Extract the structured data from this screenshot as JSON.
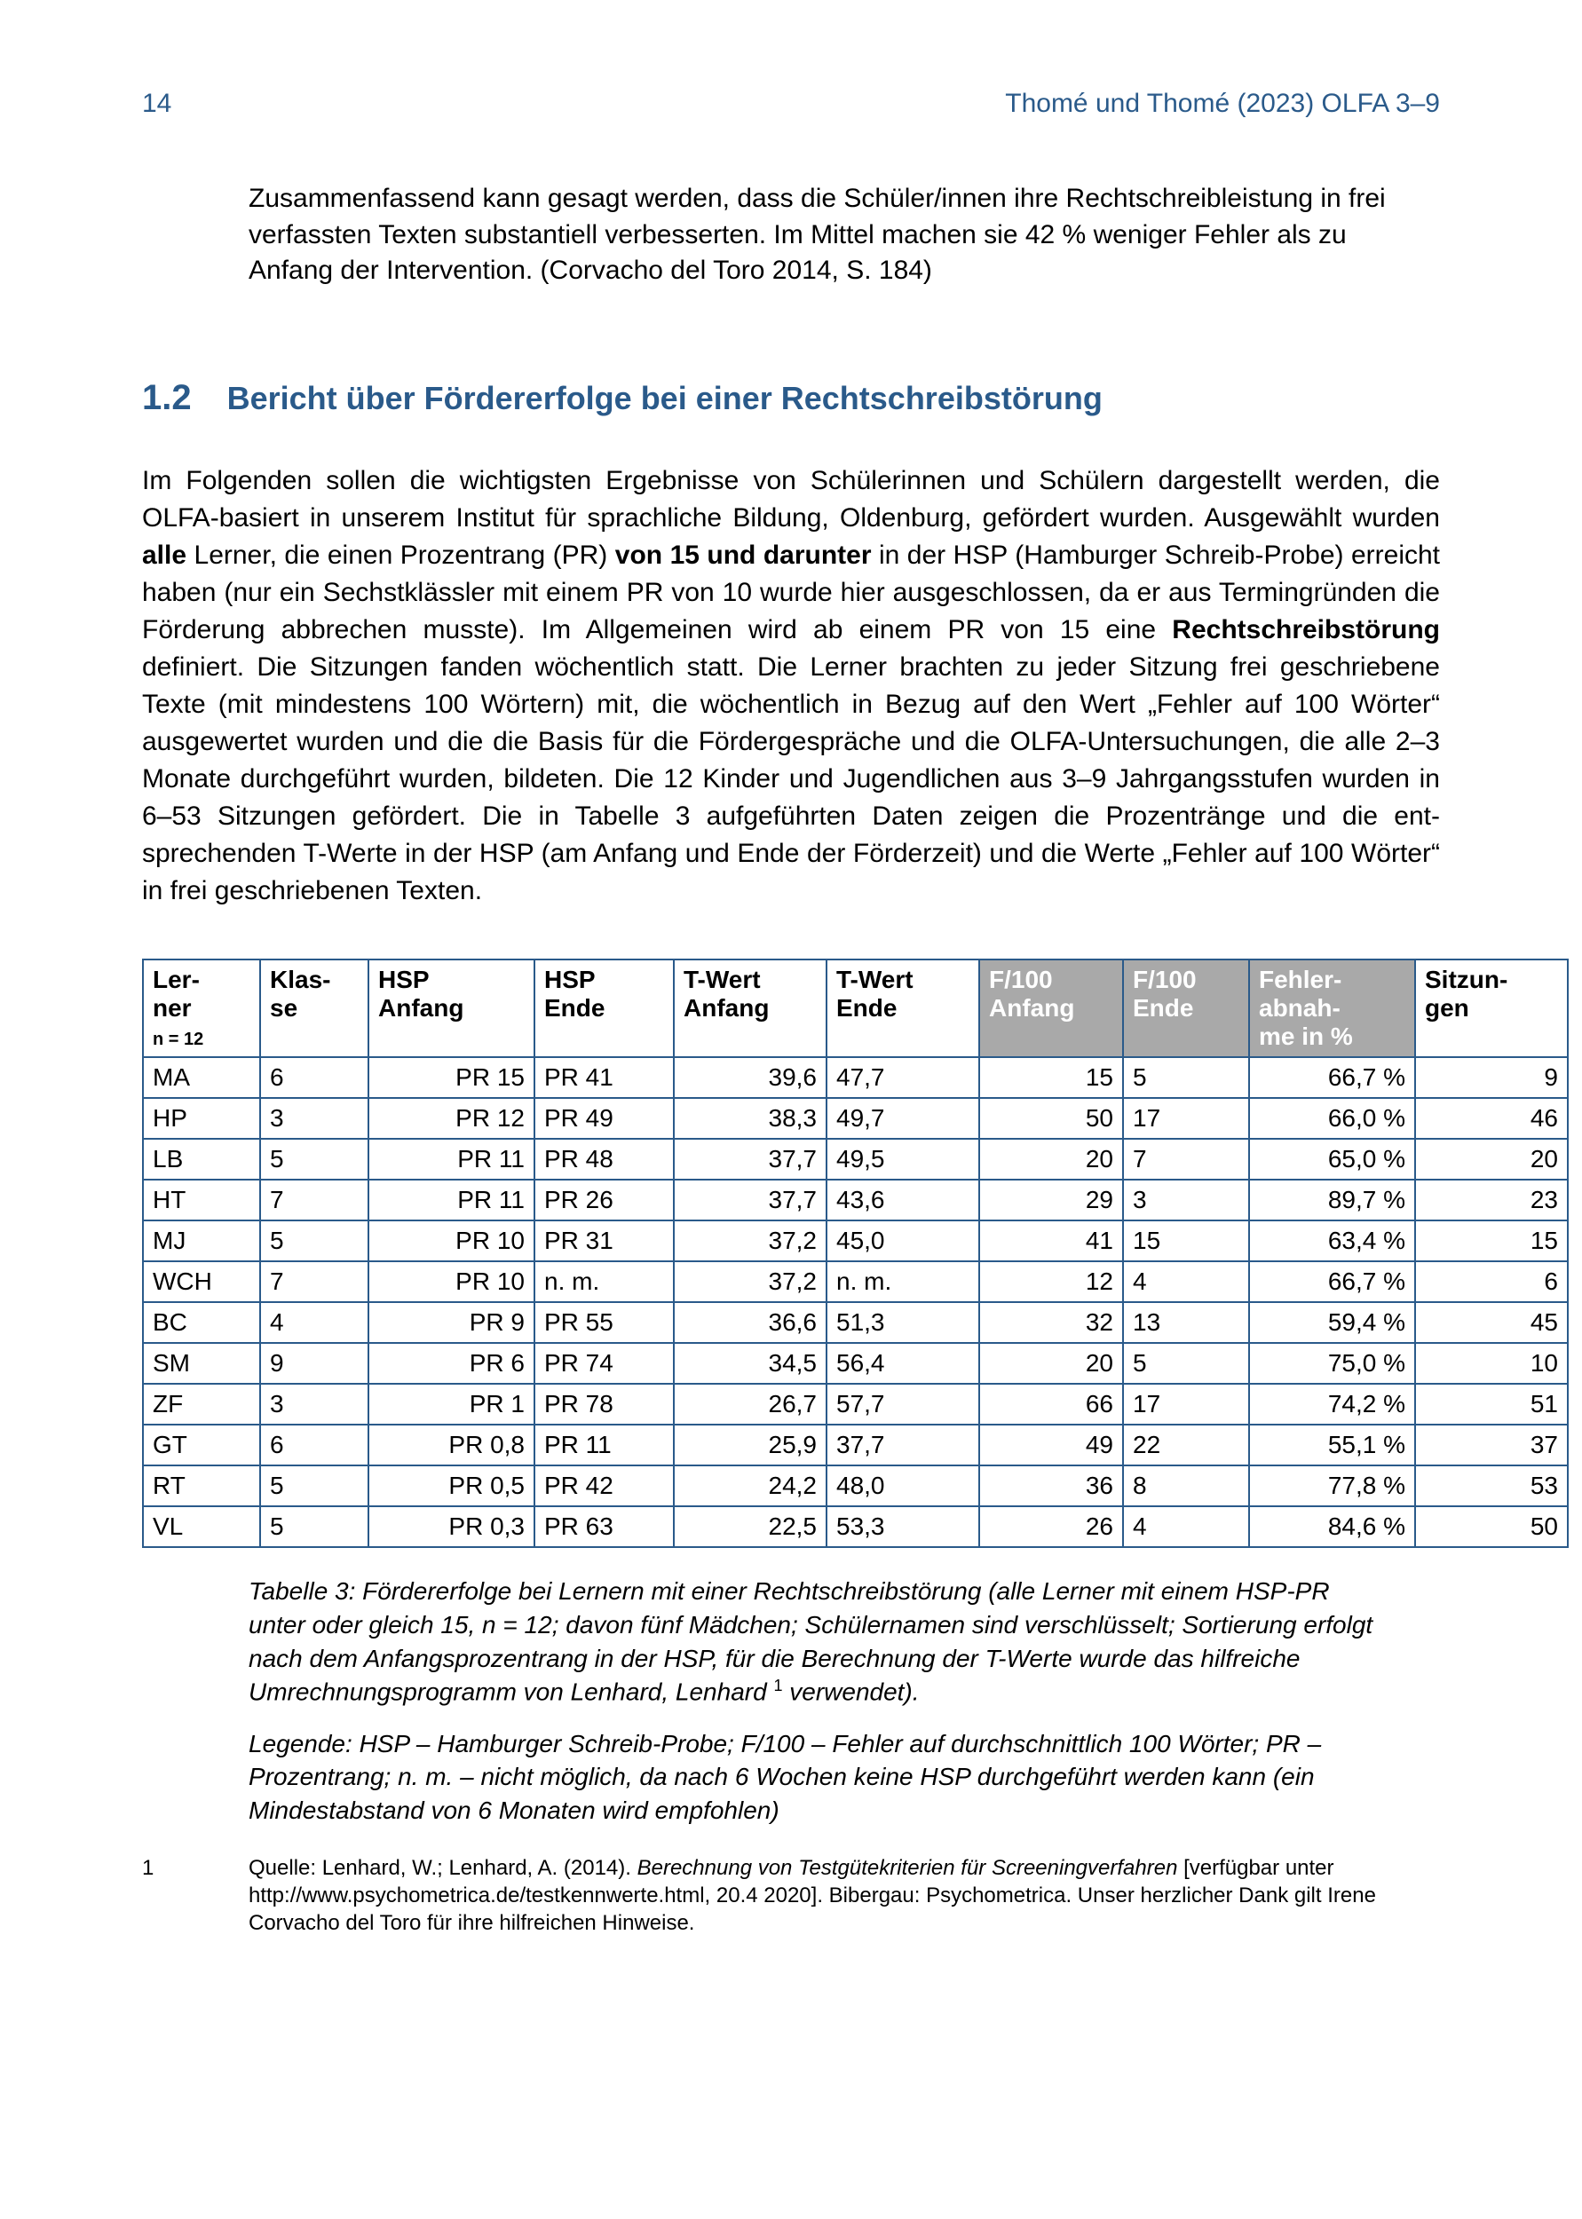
{
  "header": {
    "page_number": "14",
    "running_head": "Thomé und Thomé (2023)  OLFA 3–9"
  },
  "quote": "Zusammenfassend kann gesagt werden, dass die Schüler/innen ihre Rechtschreib­leistung in frei verfassten Texten substantiell verbesserten. Im Mittel machen sie 42 % weniger Fehler als zu Anfang der Intervention. (Corvacho del Toro 2014, S. 184)",
  "section": {
    "number": "1.2",
    "title": "Bericht über Fördererfolge bei einer Rechtschreibstörung"
  },
  "body": {
    "p1a": "Im Folgenden sollen die wichtigsten Ergebnisse von Schülerinnen und Schülern dargestellt werden, die OLFA-basiert in unserem Institut für sprachliche Bildung, Oldenburg, gefördert wurden. Ausgewählt wurden ",
    "bold1": "alle",
    "p1b": " Lerner, die einen Prozent­rang (PR) ",
    "bold2": "von 15 und darunter",
    "p1c": " in der HSP (Hamburger Schreib-Probe) erreicht haben (nur ein Sechstklässler mit einem PR von 10 wurde hier ausgeschlossen, da er aus Termingründen die Förderung abbrechen musste). Im Allgemeinen wird ab einem PR von 15 eine ",
    "bold3": "Rechtschreibstörung",
    "p1d": " definiert. Die Sitzungen fanden wöchentlich statt. Die Lerner brachten zu jeder Sitzung frei geschriebene Texte (mit mindestens 100 Wörtern) mit, die wöchentlich in Bezug auf den Wert „Fehler auf 100 Wörter“ ausgewertet wurden und die die Basis für die Fördergespräche und die OLFA-Untersuchungen, die alle 2–3 Monate durchgeführt wurden, bildeten. Die 12 Kinder und Jugendlichen aus 3–9 Jahrgangsstufen wurden in 6–53 Sitzungen ge­fördert. Die in Tabelle 3 aufgeführten Daten zeigen die Prozentränge und die ent­sprechenden T-Werte in der HSP (am Anfang und Ende der Förderzeit) und die Wer­te „Fehler auf 100 Wörter“ in frei geschriebenen Texten."
  },
  "table": {
    "columns": [
      {
        "key": "lerner",
        "label": "Ler-\nner",
        "sub": "n = 12",
        "grey": false,
        "width": 110,
        "align": "left"
      },
      {
        "key": "klasse",
        "label": "Klas-\nse",
        "sub": "",
        "grey": false,
        "width": 100,
        "align": "left"
      },
      {
        "key": "hsp_anfang",
        "label": "HSP\nAnfang",
        "sub": "",
        "grey": false,
        "width": 165,
        "align": "right"
      },
      {
        "key": "hsp_ende",
        "label": "HSP\nEnde",
        "sub": "",
        "grey": false,
        "width": 135,
        "align": "left"
      },
      {
        "key": "t_anfang",
        "label": "T-Wert\nAnfang",
        "sub": "",
        "grey": false,
        "width": 150,
        "align": "right"
      },
      {
        "key": "t_ende",
        "label": "T-Wert\nEnde",
        "sub": "",
        "grey": false,
        "width": 150,
        "align": "left"
      },
      {
        "key": "f100_anfang",
        "label": "F/100\nAnfang",
        "sub": "",
        "grey": true,
        "width": 140,
        "align": "right"
      },
      {
        "key": "f100_ende",
        "label": "F/100\nEnde",
        "sub": "",
        "grey": true,
        "width": 120,
        "align": "left"
      },
      {
        "key": "abnahme",
        "label": "Fehler-\nabnah-\nme in %",
        "sub": "",
        "grey": true,
        "width": 165,
        "align": "right"
      },
      {
        "key": "sitzungen",
        "label": "Sitzun-\ngen",
        "sub": "",
        "grey": false,
        "width": 150,
        "align": "right"
      }
    ],
    "rows": [
      {
        "lerner": "MA",
        "klasse": "6",
        "hsp_anfang": "PR 15",
        "hsp_ende": "PR 41",
        "t_anfang": "39,6",
        "t_ende": "47,7",
        "f100_anfang": "15",
        "f100_ende": "5",
        "abnahme": "66,7 %",
        "sitzungen": "9"
      },
      {
        "lerner": "HP",
        "klasse": "3",
        "hsp_anfang": "PR 12",
        "hsp_ende": "PR 49",
        "t_anfang": "38,3",
        "t_ende": "49,7",
        "f100_anfang": "50",
        "f100_ende": "17",
        "abnahme": "66,0 %",
        "sitzungen": "46"
      },
      {
        "lerner": "LB",
        "klasse": "5",
        "hsp_anfang": "PR 11",
        "hsp_ende": "PR 48",
        "t_anfang": "37,7",
        "t_ende": "49,5",
        "f100_anfang": "20",
        "f100_ende": "7",
        "abnahme": "65,0 %",
        "sitzungen": "20"
      },
      {
        "lerner": "HT",
        "klasse": "7",
        "hsp_anfang": "PR 11",
        "hsp_ende": "PR 26",
        "t_anfang": "37,7",
        "t_ende": "43,6",
        "f100_anfang": "29",
        "f100_ende": "3",
        "abnahme": "89,7 %",
        "sitzungen": "23"
      },
      {
        "lerner": "MJ",
        "klasse": "5",
        "hsp_anfang": "PR 10",
        "hsp_ende": "PR 31",
        "t_anfang": "37,2",
        "t_ende": "45,0",
        "f100_anfang": "41",
        "f100_ende": "15",
        "abnahme": "63,4 %",
        "sitzungen": "15"
      },
      {
        "lerner": "WCH",
        "klasse": "7",
        "hsp_anfang": "PR 10",
        "hsp_ende": "n. m.",
        "t_anfang": "37,2",
        "t_ende": "n. m.",
        "f100_anfang": "12",
        "f100_ende": "4",
        "abnahme": "66,7 %",
        "sitzungen": "6"
      },
      {
        "lerner": "BC",
        "klasse": "4",
        "hsp_anfang": "PR   9",
        "hsp_ende": "PR 55",
        "t_anfang": "36,6",
        "t_ende": "51,3",
        "f100_anfang": "32",
        "f100_ende": "13",
        "abnahme": "59,4 %",
        "sitzungen": "45"
      },
      {
        "lerner": "SM",
        "klasse": "9",
        "hsp_anfang": "PR   6",
        "hsp_ende": "PR 74",
        "t_anfang": "34,5",
        "t_ende": "56,4",
        "f100_anfang": "20",
        "f100_ende": "5",
        "abnahme": "75,0 %",
        "sitzungen": "10"
      },
      {
        "lerner": "ZF",
        "klasse": "3",
        "hsp_anfang": "PR   1",
        "hsp_ende": "PR 78",
        "t_anfang": "26,7",
        "t_ende": "57,7",
        "f100_anfang": "66",
        "f100_ende": "17",
        "abnahme": "74,2 %",
        "sitzungen": "51"
      },
      {
        "lerner": "GT",
        "klasse": "6",
        "hsp_anfang": "PR 0,8",
        "hsp_ende": "PR 11",
        "t_anfang": "25,9",
        "t_ende": "37,7",
        "f100_anfang": "49",
        "f100_ende": "22",
        "abnahme": "55,1 %",
        "sitzungen": "37"
      },
      {
        "lerner": "RT",
        "klasse": "5",
        "hsp_anfang": "PR 0,5",
        "hsp_ende": "PR 42",
        "t_anfang": "24,2",
        "t_ende": "48,0",
        "f100_anfang": "36",
        "f100_ende": "8",
        "abnahme": "77,8 %",
        "sitzungen": "53"
      },
      {
        "lerner": "VL",
        "klasse": "5",
        "hsp_anfang": "PR 0,3",
        "hsp_ende": "PR 63",
        "t_anfang": "22,5",
        "t_ende": "53,3",
        "f100_anfang": "26",
        "f100_ende": "4",
        "abnahme": "84,6 %",
        "sitzungen": "50"
      }
    ],
    "border_color": "#2a5a8a",
    "grey_bg": "#a9a9a9"
  },
  "caption": {
    "text1": "Tabelle 3: Fördererfolge bei Lernern mit einer Rechtschreibstörung (alle Lerner mit einem HSP-PR unter oder gleich 15, n = 12; davon fünf Mädchen; Schülernamen sind ver­schlüsselt; Sortierung erfolgt nach dem Anfangsprozentrang in der HSP, für die Be­rechnung der T-Werte wurde das hilfreiche Umrechnungsprogramm von Lenhard, Lenhard ",
    "sup": "1",
    "text2": " verwendet).",
    "legend": "Legende:  HSP – Hamburger Schreib-Probe; F/100 – Fehler auf durchschnittlich 100 Wörter; PR – Prozentrang; n. m. – nicht möglich, da nach 6 Wochen keine HSP durch­geführt werden kann (ein Mindestabstand von 6 Monaten wird empfohlen)"
  },
  "footnote": {
    "num": "1",
    "body_a": "Quelle: Lenhard, W.; Lenhard, A. (2014). ",
    "body_em": "Berechnung von Testgütekriterien für Screeningverfahren",
    "body_b": " [verfügbar unter http://www.psychometrica.de/testkennwerte.html, 20.4 2020]. Bibergau: Psychome­trica. Unser herzlicher Dank gilt Irene Corvacho del Toro für ihre hilfreichen Hinweise."
  }
}
